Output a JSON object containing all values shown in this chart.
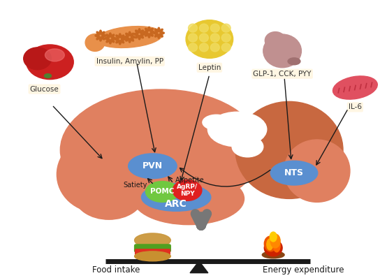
{
  "bg_color": "#ffffff",
  "brain_color": "#E08060",
  "brain_light": "#FADADC",
  "brain_dark": "#C86840",
  "brain_white": "#FFFFFF",
  "pvn_color": "#5A8FD0",
  "nts_color": "#5A8FD0",
  "arc_color": "#5A8FD0",
  "pomc_color": "#70C840",
  "agrp_color": "#E02020",
  "liver_dark": "#B81818",
  "liver_mid": "#CC2020",
  "liver_light": "#F07070",
  "pancreas_color": "#E8904A",
  "pancreas_dark": "#C86820",
  "fat_color": "#E8C830",
  "fat_dot": "#F0DC60",
  "stomach_color": "#C09090",
  "stomach_dark": "#A07070",
  "muscle_color": "#E05060",
  "muscle_dark": "#C03040",
  "muscle_light": "#F08090",
  "labels": {
    "glucose": "Glucose",
    "insulin": "Insulin, Amylin, PP",
    "leptin": "Leptin",
    "glp1": "GLP-1, CCK, PYY",
    "il6": "IL-6",
    "pvn": "PVN",
    "nts": "NTS",
    "arc": "ARC",
    "pomc": "POMC",
    "agrp": "AgRP/\nNPY",
    "satiety": "Satiety",
    "appetite": "Appetite",
    "food": "Food intake",
    "energy": "Energy expenditure"
  },
  "arrow_color": "#1A1A1A",
  "balance_color": "#1A1A1A",
  "gray_arrow_color": "#777777",
  "label_bg": "#FFF5E0"
}
